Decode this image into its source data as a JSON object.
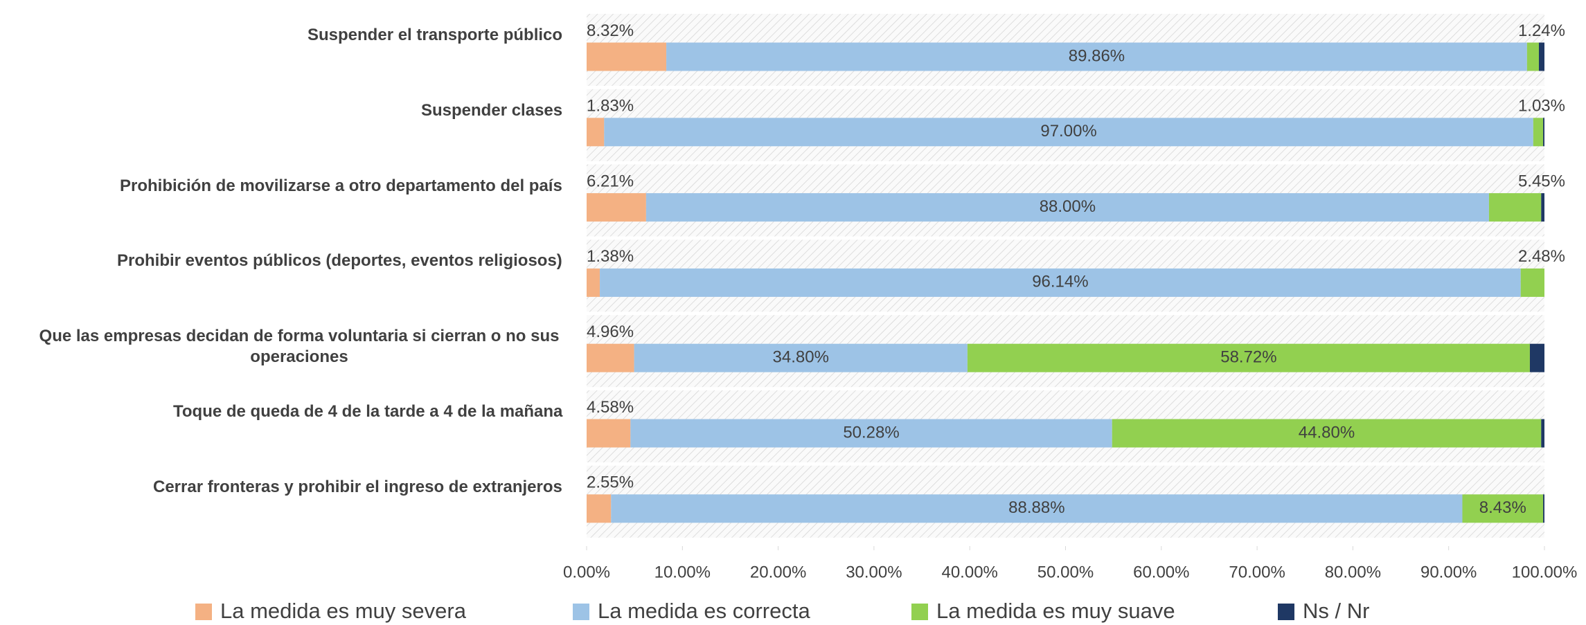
{
  "chart_data": {
    "type": "stacked_bar_horizontal",
    "categories": [
      "Suspender el transporte público",
      "Suspender clases",
      "Prohibición de movilizarse a otro departamento del país",
      "Prohibir eventos públicos (deportes, eventos religiosos)",
      "Que las empresas decidan de forma voluntaria si cierran o no sus operaciones",
      "Toque de queda de 4 de la tarde a 4 de la mañana",
      "Cerrar fronteras y prohibir el ingreso de extranjeros"
    ],
    "series": [
      {
        "name": "La medida es muy severa",
        "color": "#f4b183",
        "values": [
          8.32,
          1.83,
          6.21,
          1.38,
          4.96,
          4.58,
          2.55
        ],
        "value_labels": [
          "8.32%",
          "1.83%",
          "6.21%",
          "1.38%",
          "4.96%",
          "4.58%",
          "2.55%"
        ]
      },
      {
        "name": "La medida es correcta",
        "color": "#9dc3e6",
        "values": [
          89.86,
          97.0,
          88.0,
          96.14,
          34.8,
          50.28,
          88.88
        ],
        "value_labels": [
          "89.86%",
          "97.00%",
          "88.00%",
          "96.14%",
          "34.80%",
          "50.28%",
          "88.88%"
        ]
      },
      {
        "name": "La medida es muy suave",
        "color": "#92d050",
        "values": [
          1.24,
          1.03,
          5.45,
          2.48,
          58.72,
          44.8,
          8.43
        ],
        "value_labels": [
          "1.24%",
          "1.03%",
          "5.45%",
          "2.48%",
          "58.72%",
          "44.80%",
          "8.43%"
        ]
      },
      {
        "name": "Ns / Nr",
        "color": "#1f3864",
        "values": [
          0.58,
          0.14,
          0.34,
          0,
          1.52,
          0.34,
          0.14
        ]
      }
    ],
    "xlim": [
      0,
      100
    ],
    "xticks": [
      {
        "value": 0,
        "label": "0.00%"
      },
      {
        "value": 10,
        "label": "10.00%"
      },
      {
        "value": 20,
        "label": "20.00%"
      },
      {
        "value": 30,
        "label": "30.00%"
      },
      {
        "value": 40,
        "label": "40.00%"
      },
      {
        "value": 50,
        "label": "50.00%"
      },
      {
        "value": 60,
        "label": "60.00%"
      },
      {
        "value": 70,
        "label": "70.00%"
      },
      {
        "value": 80,
        "label": "80.00%"
      },
      {
        "value": 90,
        "label": "90.00%"
      },
      {
        "value": 100,
        "label": "100.00%"
      }
    ],
    "legend": "bottom"
  }
}
